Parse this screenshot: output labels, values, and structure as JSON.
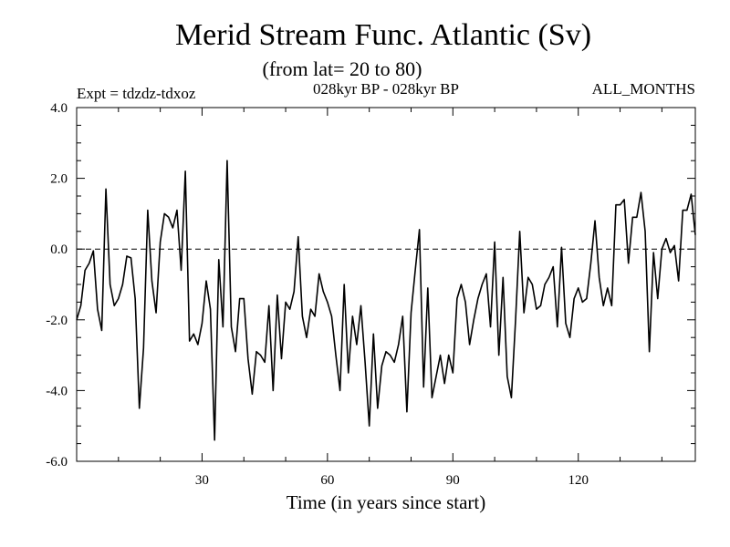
{
  "chart_data": {
    "type": "line",
    "title": "Merid Stream Func. Atlantic (Sv)",
    "subtitle": "(from lat= 20 to 80)",
    "left_label": "Expt = tdzdz-tdxoz",
    "center_label": "028kyr BP - 028kyr BP",
    "right_label": "ALL_MONTHS",
    "xlabel": "Time (in years since start)",
    "ylabel": "",
    "xlim": [
      0,
      148
    ],
    "ylim": [
      -6.0,
      4.0
    ],
    "x_ticks": [
      30,
      60,
      90,
      120
    ],
    "x_tick_labels": [
      "30",
      "60",
      "90",
      "120"
    ],
    "y_ticks": [
      -6.0,
      -4.0,
      -2.0,
      0.0,
      2.0,
      4.0
    ],
    "y_tick_labels": [
      "-6.0",
      "-4.0",
      "-2.0",
      "0.0",
      "2.0",
      "4.0"
    ],
    "reference_line": 0.0,
    "series": [
      {
        "name": "Merid Stream Func.",
        "x": [
          0,
          1,
          2,
          3,
          4,
          5,
          6,
          7,
          8,
          9,
          10,
          11,
          12,
          13,
          14,
          15,
          16,
          17,
          18,
          19,
          20,
          21,
          22,
          23,
          24,
          25,
          26,
          27,
          28,
          29,
          30,
          31,
          32,
          33,
          34,
          35,
          36,
          37,
          38,
          39,
          40,
          41,
          42,
          43,
          44,
          45,
          46,
          47,
          48,
          49,
          50,
          51,
          52,
          53,
          54,
          55,
          56,
          57,
          58,
          59,
          60,
          61,
          62,
          63,
          64,
          65,
          66,
          67,
          68,
          69,
          70,
          71,
          72,
          73,
          74,
          75,
          76,
          77,
          78,
          79,
          80,
          81,
          82,
          83,
          84,
          85,
          86,
          87,
          88,
          89,
          90,
          91,
          92,
          93,
          94,
          95,
          96,
          97,
          98,
          99,
          100,
          101,
          102,
          103,
          104,
          105,
          106,
          107,
          108,
          109,
          110,
          111,
          112,
          113,
          114,
          115,
          116,
          117,
          118,
          119,
          120,
          121,
          122,
          123,
          124,
          125,
          126,
          127,
          128,
          129,
          130,
          131,
          132,
          133,
          134,
          135,
          136,
          137,
          138,
          139,
          140,
          141,
          142,
          143,
          144,
          145,
          146,
          147,
          148
        ],
        "values": [
          -2.0,
          -1.6,
          -0.6,
          -0.4,
          -0.05,
          -1.7,
          -2.3,
          1.7,
          -1.0,
          -1.6,
          -1.4,
          -1.0,
          -0.2,
          -0.25,
          -1.4,
          -4.5,
          -2.8,
          1.1,
          -0.9,
          -1.8,
          0.2,
          1.0,
          0.9,
          0.6,
          1.1,
          -0.6,
          2.2,
          -2.6,
          -2.4,
          -2.7,
          -2.1,
          -0.9,
          -1.7,
          -5.4,
          -0.3,
          -2.2,
          2.5,
          -2.2,
          -2.9,
          -1.4,
          -1.4,
          -3.1,
          -4.1,
          -2.9,
          -3.0,
          -3.2,
          -1.6,
          -4.0,
          -1.3,
          -3.1,
          -1.5,
          -1.7,
          -1.2,
          0.35,
          -1.9,
          -2.5,
          -1.7,
          -1.9,
          -0.7,
          -1.2,
          -1.5,
          -1.9,
          -3.0,
          -4.0,
          -1.0,
          -3.5,
          -1.9,
          -2.7,
          -1.6,
          -3.2,
          -5.0,
          -2.4,
          -4.5,
          -3.3,
          -2.9,
          -3.0,
          -3.2,
          -2.7,
          -1.9,
          -4.6,
          -1.8,
          -0.6,
          0.55,
          -3.9,
          -1.1,
          -4.2,
          -3.6,
          -3.0,
          -3.8,
          -3.0,
          -3.5,
          -1.4,
          -1.0,
          -1.5,
          -2.7,
          -2.0,
          -1.4,
          -1.0,
          -0.7,
          -2.2,
          0.2,
          -3.0,
          -0.8,
          -3.6,
          -4.2,
          -2.0,
          0.5,
          -1.8,
          -0.8,
          -1.0,
          -1.7,
          -1.6,
          -1.0,
          -0.8,
          -0.5,
          -2.2,
          0.05,
          -2.1,
          -2.5,
          -1.4,
          -1.1,
          -1.5,
          -1.4,
          -0.4,
          0.8,
          -0.8,
          -1.6,
          -1.1,
          -1.6,
          1.25,
          1.25,
          1.4,
          -0.4,
          0.9,
          0.9,
          1.6,
          0.5,
          -2.9,
          -0.1,
          -1.4,
          0.0,
          0.3,
          -0.1,
          0.1,
          -0.9,
          1.1,
          1.1,
          1.55,
          0.4
        ]
      }
    ]
  }
}
